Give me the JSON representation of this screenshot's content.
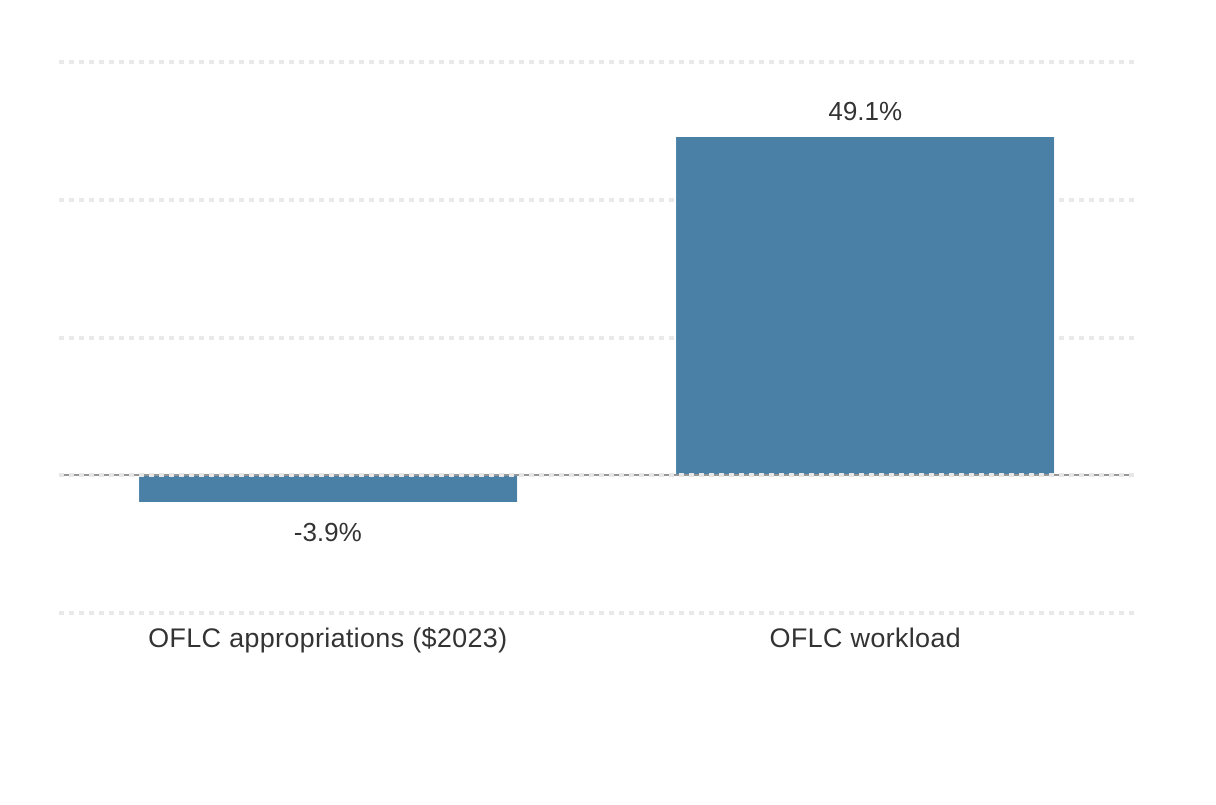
{
  "chart_data": {
    "type": "bar",
    "categories": [
      "OFLC appropriations ($2023)",
      "OFLC workload"
    ],
    "values": [
      -3.9,
      49.1
    ],
    "value_labels": [
      "-3.9%",
      "49.1%"
    ],
    "title": "",
    "xlabel": "",
    "ylabel": "",
    "ylim": [
      -20,
      60
    ],
    "gridline_interval": 20,
    "grid": "horizontal-dotted",
    "legend": "none",
    "colors": {
      "bar": "#4A80A5",
      "gridline": "#E9E9E9",
      "zero_axis": "#979797",
      "label_text": "#333333",
      "background": "#FFFFFF"
    }
  }
}
